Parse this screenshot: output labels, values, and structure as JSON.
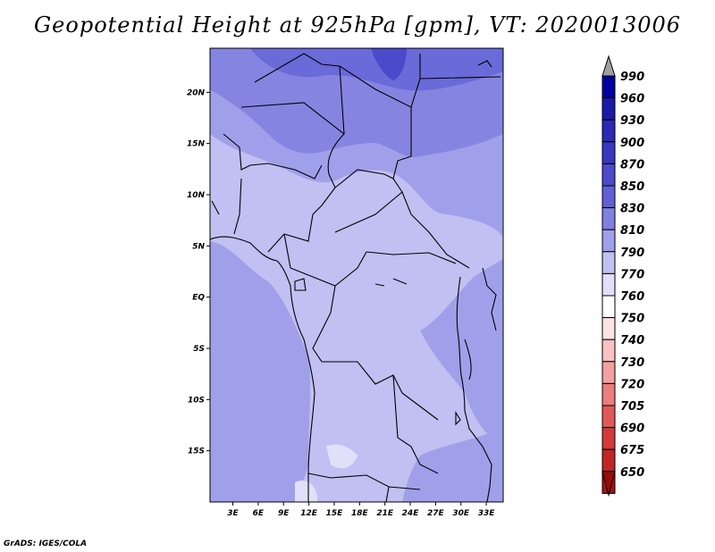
{
  "title": "Geopotential Height at 925hPa [gpm], VT: 2020013006",
  "credit": "GrADS: IGES/COLA",
  "map": {
    "lat_ticks": [
      "20N",
      "15N",
      "10N",
      "5N",
      "EQ",
      "5S",
      "10S",
      "15S"
    ],
    "lat_values": [
      20,
      15,
      10,
      5,
      0,
      -5,
      -10,
      -15
    ],
    "lon_ticks": [
      "3E",
      "6E",
      "9E",
      "12E",
      "15E",
      "18E",
      "21E",
      "24E",
      "27E",
      "30E",
      "33E"
    ],
    "lon_values": [
      3,
      6,
      9,
      12,
      15,
      18,
      21,
      24,
      27,
      30,
      33
    ]
  },
  "colorbar": {
    "levels": [
      "990",
      "960",
      "930",
      "900",
      "870",
      "850",
      "830",
      "810",
      "790",
      "770",
      "760",
      "750",
      "740",
      "730",
      "720",
      "705",
      "690",
      "675",
      "650"
    ],
    "colors": [
      "#00009f",
      "#1a1aa8",
      "#2a2ab5",
      "#3737c0",
      "#4a4acb",
      "#6060d6",
      "#8080e0",
      "#a0a0ea",
      "#c0c0f2",
      "#e0e0fa",
      "#ffffff",
      "#fde3e3",
      "#f9c1c1",
      "#f3a0a0",
      "#ea7d7d",
      "#e05858",
      "#d23a3a",
      "#c02525",
      "#a51515"
    ],
    "top_arrow_color": "#a0a0a0",
    "bottom_arrow_color": "#9b0a0a"
  }
}
